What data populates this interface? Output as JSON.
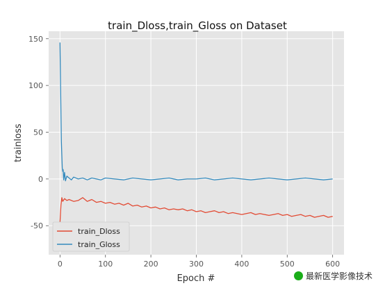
{
  "caption": {
    "text": "最新医学影像技术",
    "icon": "wechat-icon"
  },
  "chart_data": {
    "type": "line",
    "title": "train_Dloss,train_Gloss on Dataset",
    "xlabel": "Epoch #",
    "ylabel": "trainloss",
    "xlim": [
      -25,
      625
    ],
    "ylim": [
      -81,
      158
    ],
    "xticks": [
      0,
      100,
      200,
      300,
      400,
      500,
      600
    ],
    "yticks": [
      -50,
      0,
      50,
      100,
      150
    ],
    "grid": true,
    "legend_position": "lower-left",
    "background_color": "#e5e5e5",
    "grid_color": "#ffffff",
    "series": [
      {
        "name": "train_Dloss",
        "color": "#e24a33",
        "x": [
          0,
          2,
          4,
          6,
          10,
          15,
          20,
          30,
          40,
          50,
          60,
          70,
          80,
          90,
          100,
          110,
          120,
          130,
          140,
          150,
          160,
          170,
          180,
          190,
          200,
          210,
          220,
          230,
          240,
          250,
          260,
          270,
          280,
          290,
          300,
          310,
          320,
          330,
          340,
          350,
          360,
          370,
          380,
          390,
          400,
          410,
          420,
          430,
          440,
          450,
          460,
          470,
          480,
          490,
          500,
          510,
          520,
          530,
          540,
          550,
          560,
          570,
          580,
          590,
          600
        ],
        "values": [
          -47,
          -28,
          -20,
          -24,
          -21,
          -23,
          -22,
          -24,
          -23,
          -20,
          -24,
          -22,
          -25,
          -24,
          -26,
          -25,
          -27,
          -26,
          -28,
          -26,
          -29,
          -28,
          -30,
          -29,
          -31,
          -30,
          -32,
          -31,
          -33,
          -32,
          -33,
          -32,
          -34,
          -33,
          -35,
          -34,
          -36,
          -35,
          -34,
          -36,
          -35,
          -37,
          -36,
          -37,
          -38,
          -37,
          -36,
          -38,
          -37,
          -38,
          -39,
          -38,
          -37,
          -39,
          -38,
          -40,
          -39,
          -38,
          -40,
          -39,
          -41,
          -40,
          -39,
          -41,
          -40
        ]
      },
      {
        "name": "train_Gloss",
        "color": "#348abd",
        "x": [
          0,
          1,
          2,
          3,
          4,
          5,
          6,
          7,
          8,
          10,
          12,
          15,
          20,
          25,
          30,
          40,
          50,
          60,
          70,
          80,
          90,
          100,
          120,
          140,
          160,
          180,
          200,
          220,
          240,
          260,
          280,
          300,
          320,
          340,
          360,
          380,
          400,
          420,
          440,
          460,
          480,
          500,
          520,
          540,
          560,
          580,
          600
        ],
        "values": [
          146,
          110,
          70,
          40,
          25,
          12,
          8,
          10,
          -1,
          7,
          -2,
          3,
          1,
          -1,
          2,
          0,
          1,
          -1,
          1,
          0,
          -1,
          1,
          0,
          -1,
          1,
          0,
          -1,
          0,
          1,
          -1,
          0,
          0,
          1,
          -1,
          0,
          1,
          0,
          -1,
          0,
          1,
          0,
          -1,
          0,
          1,
          0,
          -1,
          0
        ]
      }
    ]
  }
}
